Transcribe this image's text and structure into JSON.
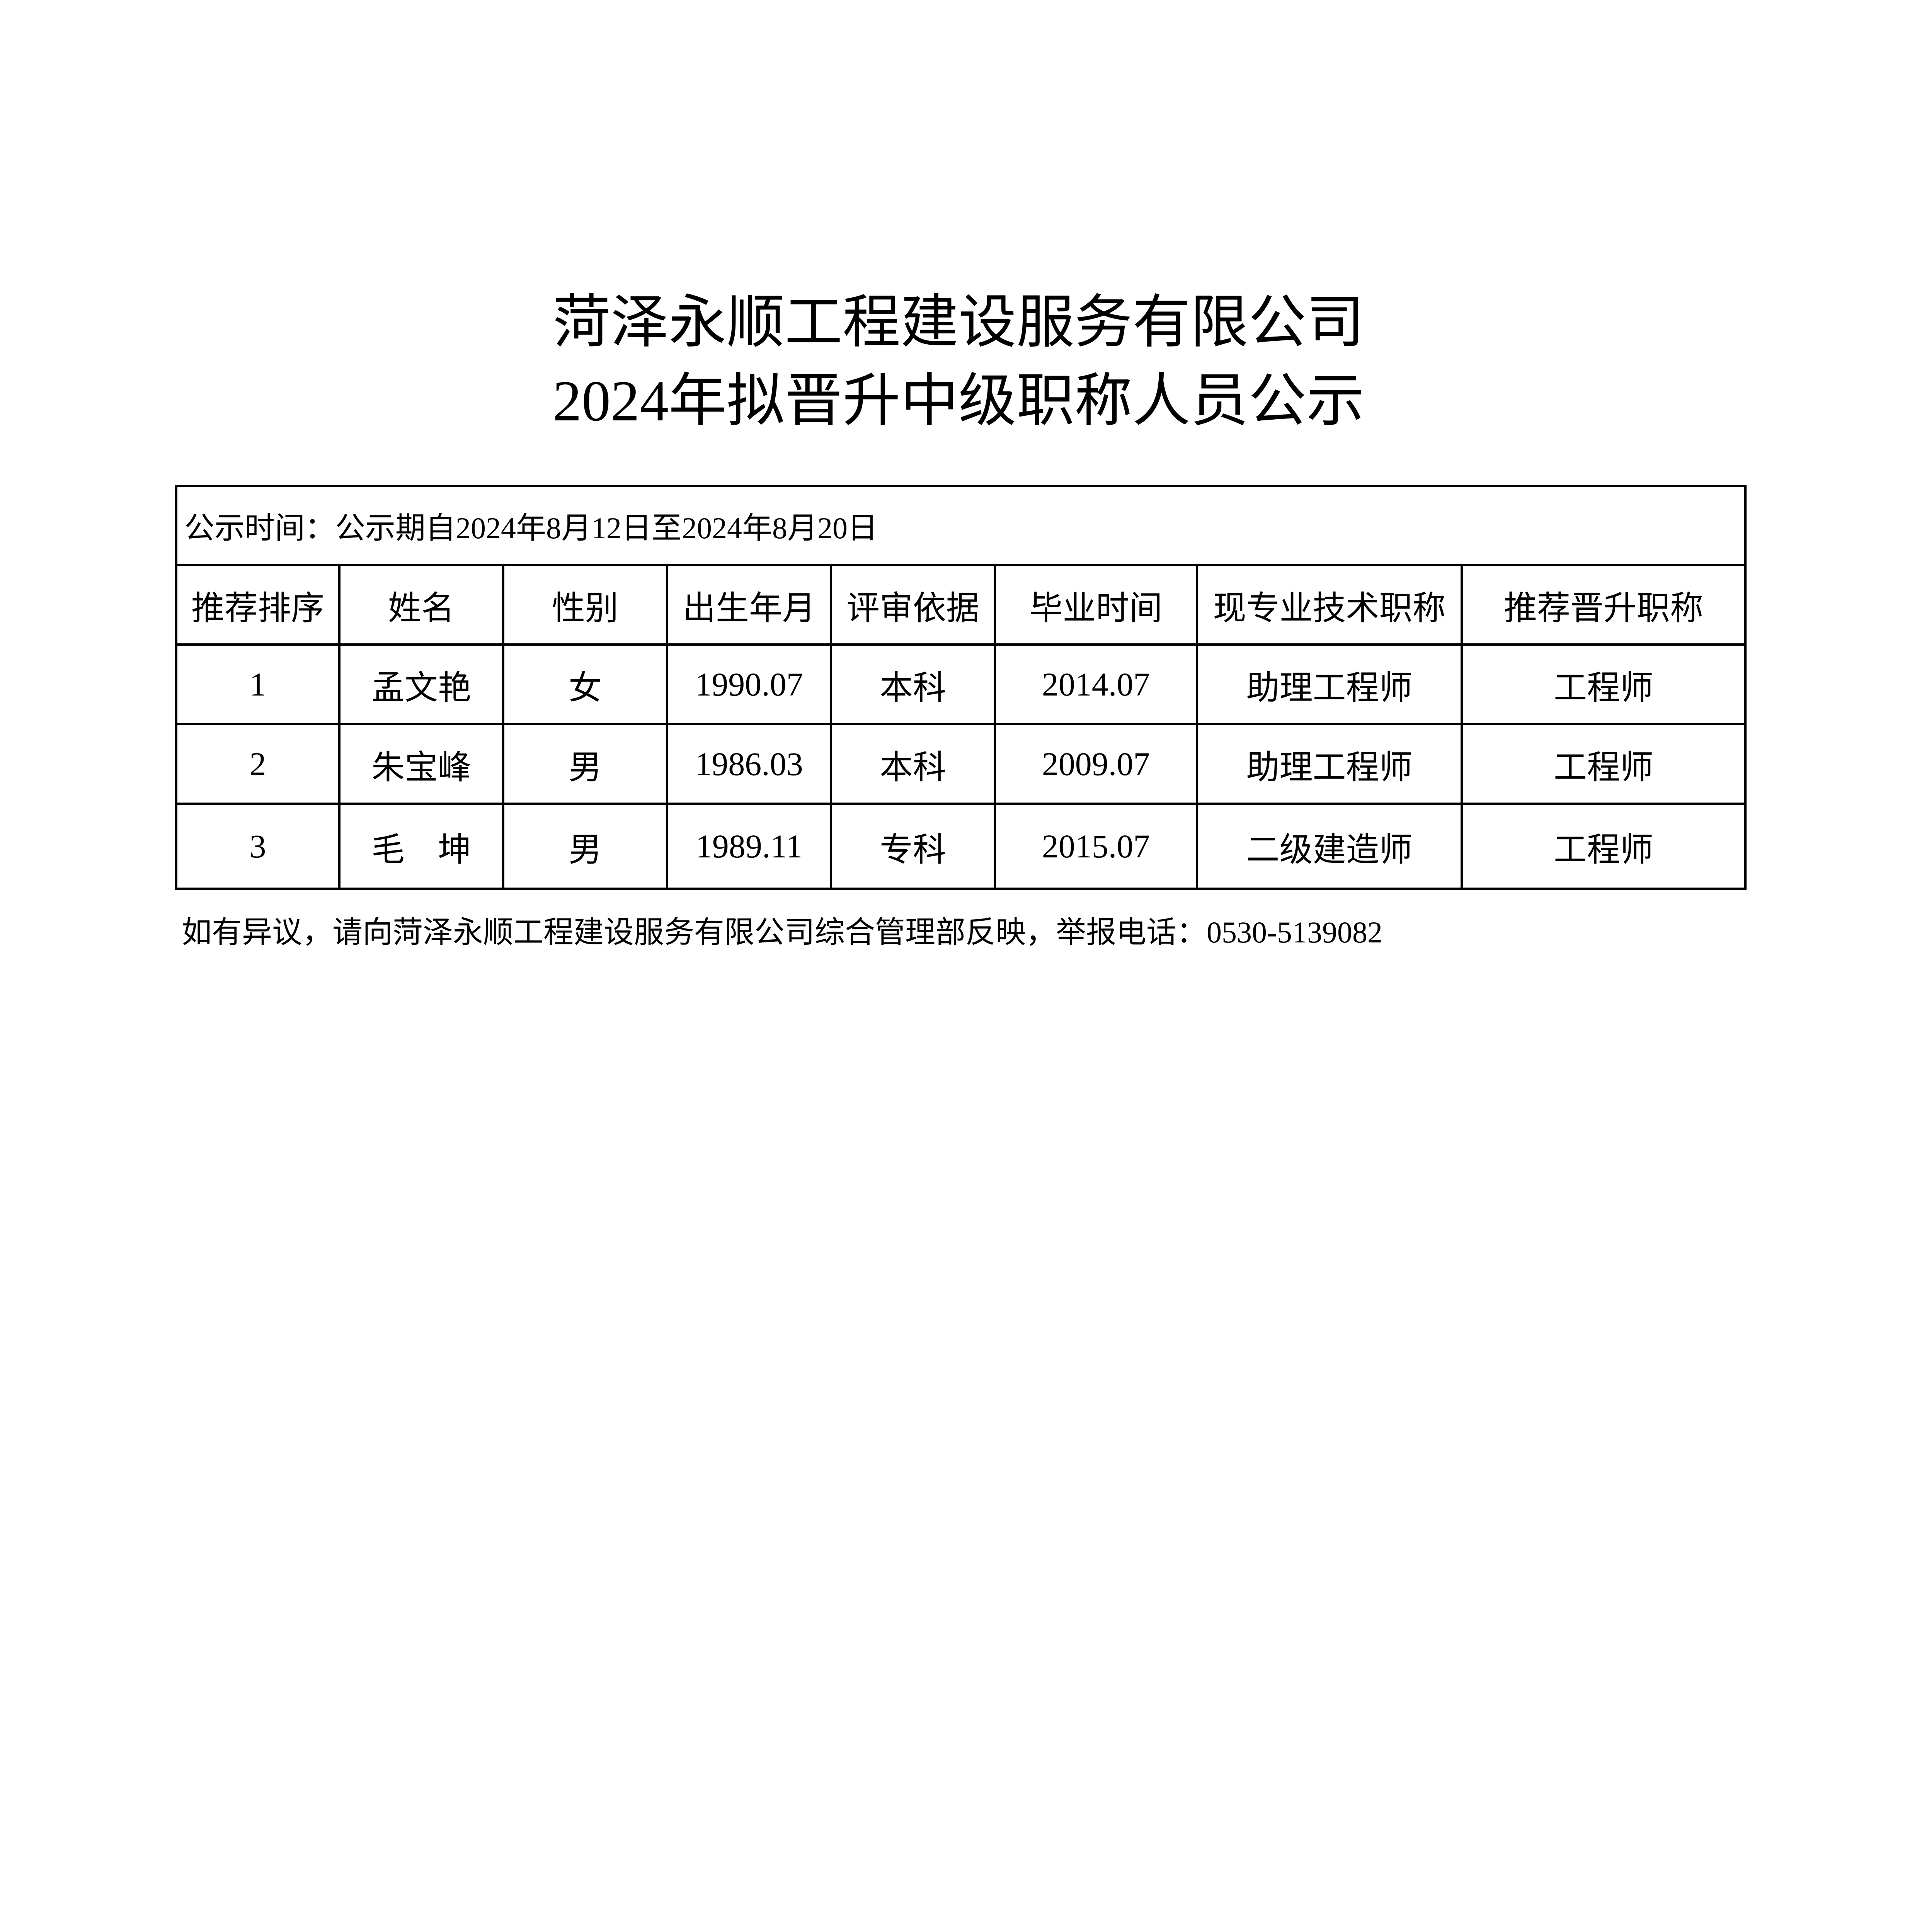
{
  "title": {
    "line1": "菏泽永顺工程建设服务有限公司",
    "line2": "2024年拟晋升中级职称人员公示"
  },
  "notice": "公示时间：公示期自2024年8月12日至2024年8月20日",
  "table": {
    "headers": [
      "推荐排序",
      "姓名",
      "性别",
      "出生年月",
      "评审依据",
      "毕业时间",
      "现专业技术职称",
      "推荐晋升职称"
    ],
    "rows": [
      [
        "1",
        "孟文艳",
        "女",
        "1990.07",
        "本科",
        "2014.07",
        "助理工程师",
        "工程师"
      ],
      [
        "2",
        "朱宝峰",
        "男",
        "1986.03",
        "本科",
        "2009.07",
        "助理工程师",
        "工程师"
      ],
      [
        "3",
        "毛　坤",
        "男",
        "1989.11",
        "专科",
        "2015.07",
        "二级建造师",
        "工程师"
      ]
    ]
  },
  "footer": "如有异议，请向菏泽永顺工程建设服务有限公司综合管理部反映，举报电话：0530-5139082"
}
